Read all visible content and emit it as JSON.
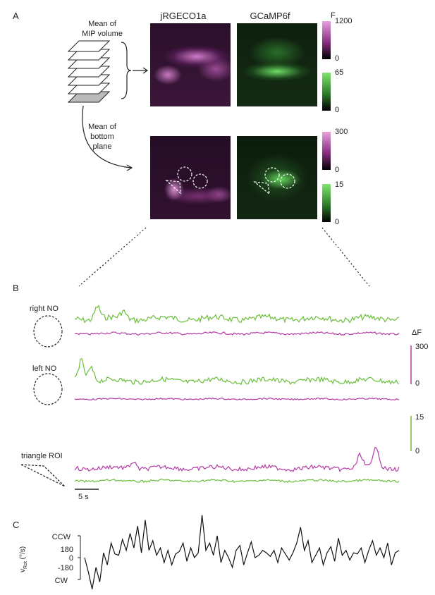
{
  "panel_labels": {
    "a": "A",
    "b": "B",
    "c": "C"
  },
  "panel_a": {
    "col_titles": [
      "jRGECO1a",
      "GCaMP6f"
    ],
    "f_label": "F",
    "mip_label_line1": "Mean of",
    "mip_label_line2": "MIP volume",
    "bottom_label_line1": "Mean of",
    "bottom_label_line2": "bottom",
    "bottom_label_line3": "plane",
    "scales": [
      {
        "max": "1200",
        "min": "0",
        "color": "#d684cf"
      },
      {
        "max": "65",
        "min": "0",
        "color": "#6ee05f"
      },
      {
        "max": "300",
        "min": "0",
        "color": "#d684cf"
      },
      {
        "max": "15",
        "min": "0",
        "color": "#6ee05f"
      }
    ]
  },
  "panel_b": {
    "roi_labels": [
      "right NO",
      "left NO",
      "triangle ROI"
    ],
    "delta_f_label": "ΔF",
    "scale_magenta": {
      "max": "300",
      "min": "0"
    },
    "scale_green": {
      "max": "15",
      "min": "0"
    },
    "time_scale_label": "5 s",
    "colors": {
      "green": "#6abf3a",
      "magenta": "#b43aa5"
    }
  },
  "panel_c": {
    "ylabel_main": "v",
    "ylabel_sub": "Rot",
    "ylabel_unit": " (°/s)",
    "ccw_label": "CCW",
    "cw_label": "CW",
    "ticks": [
      "180",
      "0",
      "-180"
    ]
  },
  "chart_data": {
    "type": "line",
    "title": "",
    "xlabel": "",
    "ylabel": "vRot (°/s)",
    "yticks": [
      180,
      0,
      -180
    ],
    "series": [
      {
        "values": [
          0,
          -120,
          -260,
          -80,
          -200,
          40,
          -60,
          120,
          30,
          20,
          150,
          60,
          200,
          80,
          260,
          40,
          310,
          60,
          140,
          20,
          80,
          -40,
          60,
          -60,
          30,
          50,
          120,
          -30,
          80,
          0,
          40,
          350,
          60,
          120,
          20,
          180,
          -40,
          60,
          0,
          -80,
          60,
          100,
          -60,
          40,
          130,
          0,
          20,
          60,
          40,
          10,
          60,
          -40,
          80,
          30,
          -20,
          40,
          120,
          250,
          60,
          140,
          -40,
          20,
          80,
          -60,
          40,
          90,
          -30,
          160,
          20,
          60,
          -20,
          40,
          30,
          80,
          -40,
          60,
          140,
          20,
          80,
          0,
          120,
          -60,
          40,
          60
        ]
      }
    ]
  }
}
